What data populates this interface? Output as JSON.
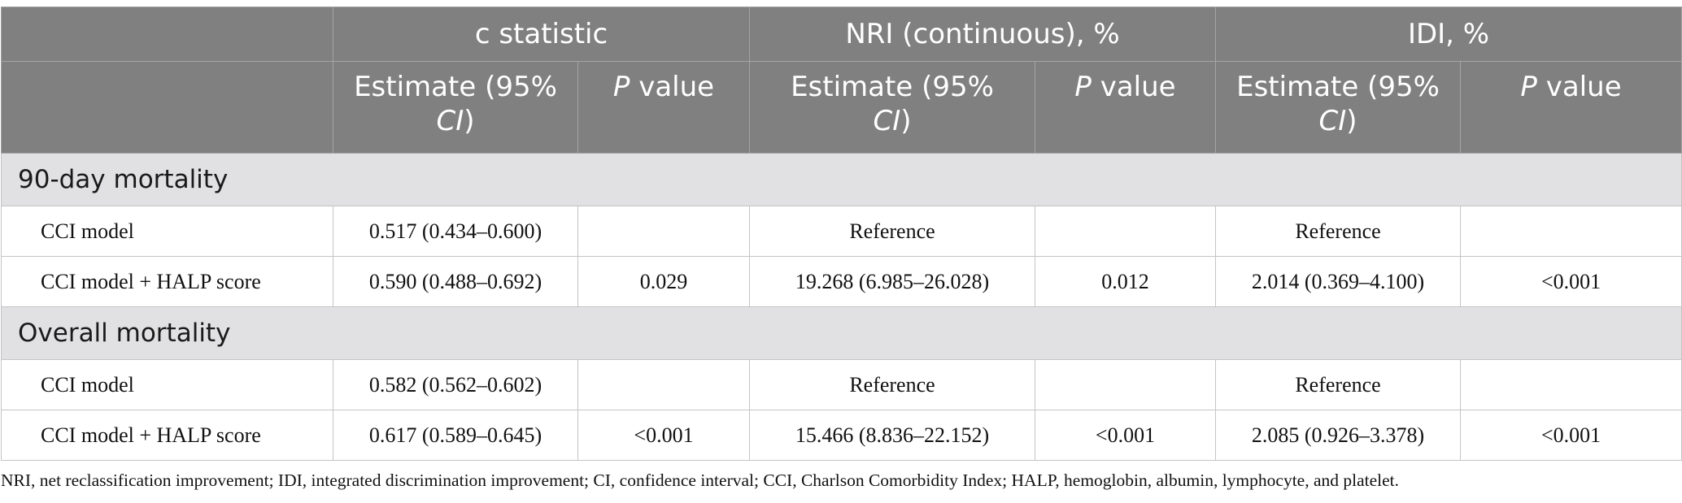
{
  "header": {
    "groups": [
      "c statistic",
      "NRI (continuous), %",
      "IDI, %"
    ],
    "sub": {
      "estimate_pre": "Estimate (95% ",
      "estimate_ci": "CI",
      "estimate_post": ")",
      "pvalue_p": "P",
      "pvalue_rest": " value"
    }
  },
  "sections": [
    {
      "title": "90-day mortality",
      "rows": [
        {
          "label": "CCI model",
          "c_est": "0.517 (0.434–0.600)",
          "c_p": "",
          "nri_est": "Reference",
          "nri_p": "",
          "idi_est": "Reference",
          "idi_p": ""
        },
        {
          "label": "CCI model + HALP score",
          "c_est": "0.590 (0.488–0.692)",
          "c_p": "0.029",
          "nri_est": "19.268 (6.985–26.028)",
          "nri_p": "0.012",
          "idi_est": "2.014 (0.369–4.100)",
          "idi_p": "<0.001"
        }
      ]
    },
    {
      "title": "Overall mortality",
      "rows": [
        {
          "label": "CCI model",
          "c_est": "0.582 (0.562–0.602)",
          "c_p": "",
          "nri_est": "Reference",
          "nri_p": "",
          "idi_est": "Reference",
          "idi_p": ""
        },
        {
          "label": "CCI model + HALP score",
          "c_est": "0.617 (0.589–0.645)",
          "c_p": "<0.001",
          "nri_est": "15.466 (8.836–22.152)",
          "nri_p": "<0.001",
          "idi_est": "2.085 (0.926–3.378)",
          "idi_p": "<0.001"
        }
      ]
    }
  ],
  "footnote": "NRI, net reclassification improvement; IDI, integrated discrimination improvement; CI, confidence interval; CCI, Charlson Comorbidity Index; HALP, hemoglobin, albumin, lymphocyte, and platelet.",
  "colors": {
    "header_bg": "#808080",
    "section_bg": "#e1e0e2",
    "border": "#c4c4c4"
  }
}
